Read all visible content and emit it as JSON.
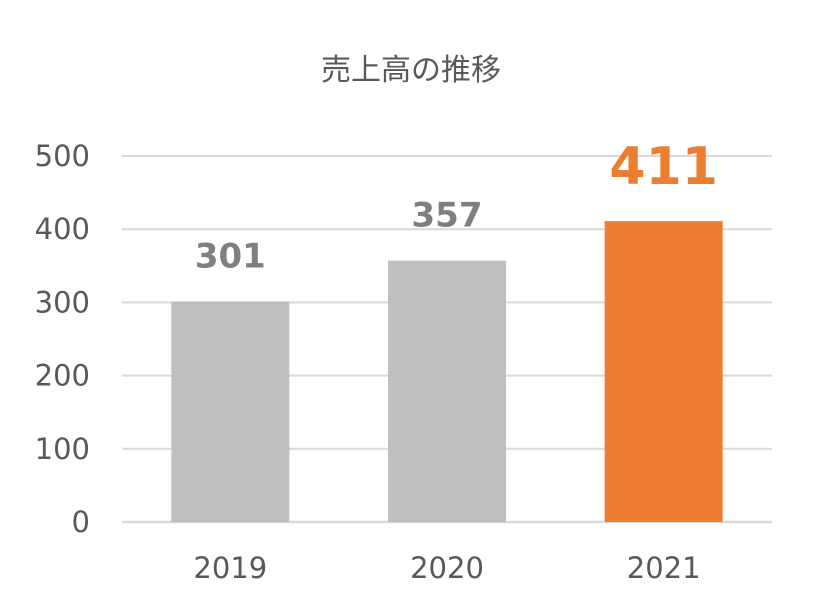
{
  "chart_data": {
    "type": "bar",
    "title": "売上高の推移",
    "categories": [
      "2019",
      "2020",
      "2021"
    ],
    "values": [
      301,
      357,
      411
    ],
    "data_labels": [
      "301",
      "357",
      "411"
    ],
    "ylim": [
      0,
      500
    ],
    "yticks": [
      "0",
      "100",
      "200",
      "300",
      "400",
      "500"
    ],
    "xlabel": "",
    "ylabel": "",
    "grid": true,
    "legend": "none",
    "colors": {
      "bar_default": "#bfbfbf",
      "bar_highlight": "#ed7d31",
      "label_default": "#7f7f7f",
      "label_highlight": "#ed7d31"
    },
    "highlight_index": 2
  }
}
